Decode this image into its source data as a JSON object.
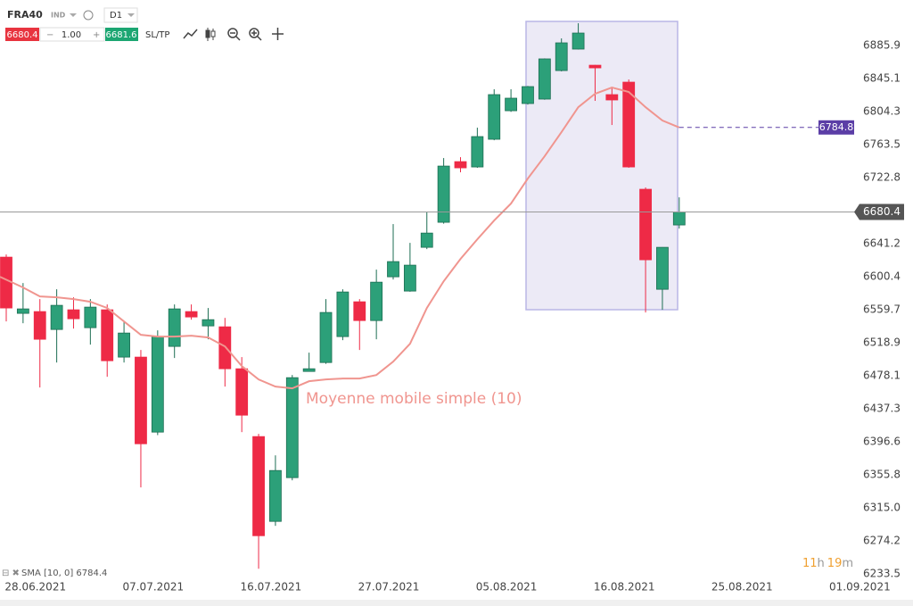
{
  "toolbar": {
    "symbol": "FRA40",
    "market": "IND",
    "timeframe": "D1",
    "sell": "6680.4",
    "quantity": "1.00",
    "buy": "6681.6",
    "sltp": "SL/TP"
  },
  "indicator_legend": "SMA [10, 0] 6784.4",
  "countdown": {
    "hours": 11,
    "hours_unit": "h",
    "minutes": 19,
    "minutes_unit": "m"
  },
  "chart_data": {
    "type": "candlestick",
    "categories": [
      null,
      null,
      "28.06.2021",
      null,
      null,
      null,
      null,
      null,
      null,
      "07.07.2021",
      null,
      null,
      null,
      null,
      null,
      null,
      "16.07.2021",
      null,
      null,
      null,
      null,
      null,
      null,
      "27.07.2021",
      null,
      null,
      null,
      null,
      null,
      null,
      "05.08.2021",
      null,
      null,
      null,
      null,
      null,
      null,
      "16.08.2021",
      null,
      null,
      null,
      null,
      null,
      null,
      "25.08.2021",
      null,
      null,
      null,
      null,
      null,
      null,
      "01.09.2021"
    ],
    "open": [
      6624.7,
      6555.3,
      6557.5,
      6535.4,
      6559.7,
      6537.6,
      6559.7,
      6501.3,
      6501.3,
      6408.7,
      6514.5,
      6557.5,
      6539.8,
      6538.7,
      6486.9,
      6403.2,
      6298.5,
      6352.5,
      6483.6,
      6494.6,
      6526.6,
      6569.6,
      6546.4,
      6600.4,
      6582.8,
      6636.8,
      6667.7,
      6742.6,
      6736.0,
      6770.2,
      6805.4,
      6814.3,
      6819.8,
      6855.0,
      6881.5,
      6861.6,
      6825.3,
      6840.7,
      6708.5,
      6585.0,
      6664.4,
      null,
      null,
      null,
      null,
      null,
      null,
      null,
      null,
      null,
      null,
      null
    ],
    "high": [
      6628.0,
      6592.7,
      6572.9,
      6585.0,
      6575.1,
      6572.9,
      6566.3,
      6545.3,
      6510.1,
      6534.3,
      6566.3,
      6566.3,
      6561.9,
      6549.7,
      6501.3,
      6406.5,
      6380.0,
      6479.2,
      6506.8,
      6572.9,
      6585.0,
      6572.9,
      6609.3,
      6665.5,
      6642.3,
      6680.9,
      6747.0,
      6748.1,
      6784.5,
      6831.9,
      6831.9,
      6836.0,
      6870.0,
      6894.7,
      6913.4,
      6862.0,
      6833.0,
      6844.0,
      6710.7,
      6637.0,
      6698.5,
      null,
      null,
      null,
      null,
      null,
      null,
      null,
      null,
      null,
      null,
      null
    ],
    "low": [
      6545.3,
      6543.1,
      6463.8,
      6494.6,
      6536.5,
      6516.7,
      6477.0,
      6494.6,
      6340.4,
      6405.0,
      6500.2,
      6547.5,
      6523.3,
      6464.9,
      6408.7,
      6240.1,
      6293.0,
      6349.2,
      6483.6,
      6493.0,
      6522.2,
      6510.1,
      6523.3,
      6597.1,
      6582.0,
      6634.6,
      6666.0,
      6729.4,
      6735.0,
      6769.0,
      6804.0,
      6813.0,
      6819.0,
      6854.0,
      6881.0,
      6817.6,
      6787.8,
      6735.0,
      6556.4,
      6559.7,
      6660.0,
      null,
      null,
      null,
      null,
      null,
      null,
      null,
      null,
      null,
      null,
      null
    ],
    "close": [
      6561.9,
      6560.8,
      6523.3,
      6565.2,
      6548.6,
      6563.0,
      6496.8,
      6531.0,
      6394.3,
      6526.6,
      6560.8,
      6550.8,
      6547.5,
      6486.9,
      6429.6,
      6280.8,
      6361.3,
      6475.9,
      6486.9,
      6556.4,
      6581.7,
      6546.4,
      6593.8,
      6619.2,
      6614.8,
      6654.4,
      6737.1,
      6734.9,
      6773.5,
      6825.3,
      6820.9,
      6835.2,
      6869.4,
      6889.2,
      6901.3,
      6858.3,
      6818.7,
      6736.0,
      6621.4,
      6636.8,
      6680.4,
      null,
      null,
      null,
      null,
      null,
      null,
      null,
      null,
      null,
      null,
      null
    ],
    "up_color": "#2ca079",
    "down_color": "#ee2a46",
    "sma": {
      "name": "Moyenne mobile simple (10)",
      "color": "#f0958f",
      "values": [
        6600.4,
        6587.2,
        6576.2,
        6575.1,
        6572.9,
        6569.6,
        6561.9,
        6545.3,
        6528.8,
        6526.6,
        6526.6,
        6527.7,
        6525.5,
        6514.5,
        6490.2,
        6473.7,
        6464.9,
        6462.7,
        6471.5,
        6473.7,
        6474.8,
        6474.8,
        6479.2,
        6495.7,
        6517.8,
        6561.9,
        6594.9,
        6622.5,
        6646.7,
        6669.9,
        6690.8,
        6721.7,
        6749.2,
        6779.0,
        6809.8,
        6826.4,
        6834.1,
        6828.6,
        6809.8,
        6793.3,
        6784.8,
        null,
        null,
        null,
        null,
        null,
        null,
        null,
        null,
        null,
        null,
        null
      ]
    },
    "ylim": [
      6226,
      6942.1
    ],
    "yticks": [
      6885.9,
      6845.1,
      6804.3,
      6763.5,
      6722.8,
      6641.2,
      6600.4,
      6559.7,
      6518.9,
      6478.1,
      6437.3,
      6396.6,
      6355.8,
      {
        "value": 6315,
        "label": "6315.0"
      },
      6274.2,
      6233.5
    ]
  }
}
